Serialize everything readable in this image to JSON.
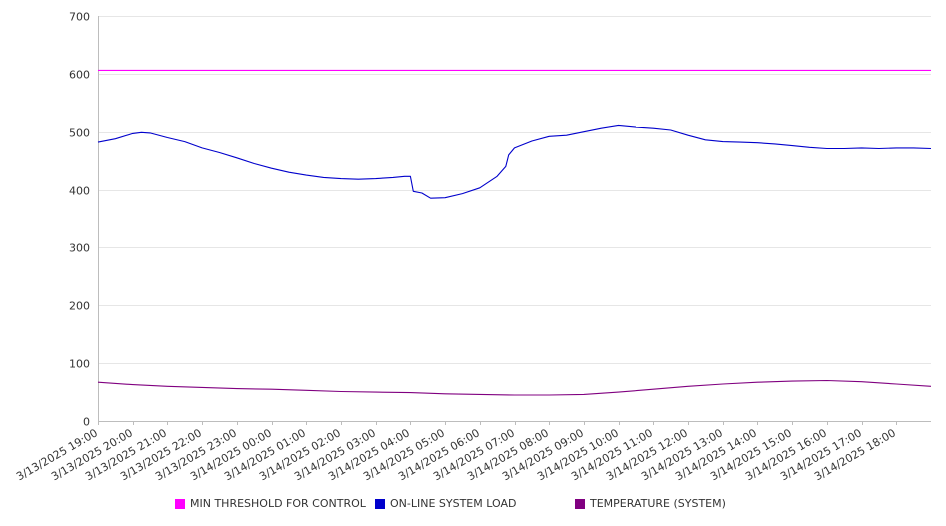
{
  "chart_data": {
    "type": "line",
    "title": "",
    "xlabel": "",
    "ylabel": "",
    "ylim": [
      0,
      700
    ],
    "yticks": [
      "0",
      "100",
      "200",
      "300",
      "400",
      "500",
      "600",
      "700"
    ],
    "grid": true,
    "legend_position": "bottom",
    "x_tick_labels": [
      "3/13/2025 19:00",
      "3/13/2025 20:00",
      "3/13/2025 21:00",
      "3/13/2025 22:00",
      "3/13/2025 23:00",
      "3/14/2025 00:00",
      "3/14/2025 01:00",
      "3/14/2025 02:00",
      "3/14/2025 03:00",
      "3/14/2025 04:00",
      "3/14/2025 05:00",
      "3/14/2025 06:00",
      "3/14/2025 07:00",
      "3/14/2025 08:00",
      "3/14/2025 09:00",
      "3/14/2025 10:00",
      "3/14/2025 11:00",
      "3/14/2025 12:00",
      "3/14/2025 13:00",
      "3/14/2025 14:00",
      "3/14/2025 15:00",
      "3/14/2025 16:00",
      "3/14/2025 17:00",
      "3/14/2025 18:00"
    ],
    "series": [
      {
        "name": "MIN THRESHOLD FOR CONTROL",
        "color": "#ff00ff",
        "points": [
          [
            "3/13/2025 19:00",
            606
          ],
          [
            "3/14/2025 19:00",
            606
          ]
        ]
      },
      {
        "name": "ON-LINE SYSTEM LOAD",
        "color": "#0000cc",
        "points": [
          [
            "3/13/2025 19:00",
            482
          ],
          [
            "3/13/2025 19:30",
            488
          ],
          [
            "3/13/2025 20:00",
            497
          ],
          [
            "3/13/2025 20:15",
            499
          ],
          [
            "3/13/2025 20:30",
            498
          ],
          [
            "3/13/2025 21:00",
            490
          ],
          [
            "3/13/2025 21:30",
            483
          ],
          [
            "3/13/2025 22:00",
            472
          ],
          [
            "3/13/2025 22:30",
            464
          ],
          [
            "3/13/2025 23:00",
            455
          ],
          [
            "3/13/2025 23:30",
            445
          ],
          [
            "3/14/2025 00:00",
            437
          ],
          [
            "3/14/2025 00:30",
            430
          ],
          [
            "3/14/2025 01:00",
            425
          ],
          [
            "3/14/2025 01:30",
            421
          ],
          [
            "3/14/2025 02:00",
            419
          ],
          [
            "3/14/2025 02:30",
            418
          ],
          [
            "3/14/2025 03:00",
            419
          ],
          [
            "3/14/2025 03:30",
            421
          ],
          [
            "3/14/2025 03:50",
            423
          ],
          [
            "3/14/2025 04:00",
            423
          ],
          [
            "3/14/2025 04:05",
            397
          ],
          [
            "3/14/2025 04:20",
            394
          ],
          [
            "3/14/2025 04:35",
            385
          ],
          [
            "3/14/2025 05:00",
            386
          ],
          [
            "3/14/2025 05:30",
            393
          ],
          [
            "3/14/2025 06:00",
            403
          ],
          [
            "3/14/2025 06:30",
            423
          ],
          [
            "3/14/2025 06:45",
            440
          ],
          [
            "3/14/2025 06:50",
            460
          ],
          [
            "3/14/2025 07:00",
            472
          ],
          [
            "3/14/2025 07:30",
            484
          ],
          [
            "3/14/2025 08:00",
            492
          ],
          [
            "3/14/2025 08:30",
            494
          ],
          [
            "3/14/2025 09:00",
            500
          ],
          [
            "3/14/2025 09:30",
            506
          ],
          [
            "3/14/2025 10:00",
            511
          ],
          [
            "3/14/2025 10:30",
            508
          ],
          [
            "3/14/2025 11:00",
            506
          ],
          [
            "3/14/2025 11:30",
            503
          ],
          [
            "3/14/2025 12:00",
            494
          ],
          [
            "3/14/2025 12:30",
            486
          ],
          [
            "3/14/2025 13:00",
            483
          ],
          [
            "3/14/2025 13:30",
            482
          ],
          [
            "3/14/2025 14:00",
            481
          ],
          [
            "3/14/2025 14:30",
            479
          ],
          [
            "3/14/2025 15:00",
            476
          ],
          [
            "3/14/2025 15:30",
            473
          ],
          [
            "3/14/2025 16:00",
            471
          ],
          [
            "3/14/2025 16:30",
            471
          ],
          [
            "3/14/2025 17:00",
            472
          ],
          [
            "3/14/2025 17:30",
            471
          ],
          [
            "3/14/2025 18:00",
            472
          ],
          [
            "3/14/2025 18:30",
            472
          ],
          [
            "3/14/2025 19:00",
            471
          ]
        ]
      },
      {
        "name": "TEMPERATURE (SYSTEM)",
        "color": "#800080",
        "points": [
          [
            "3/13/2025 19:00",
            67
          ],
          [
            "3/13/2025 20:00",
            63
          ],
          [
            "3/13/2025 21:00",
            60
          ],
          [
            "3/13/2025 22:00",
            58
          ],
          [
            "3/13/2025 23:00",
            56
          ],
          [
            "3/14/2025 00:00",
            55
          ],
          [
            "3/14/2025 01:00",
            53
          ],
          [
            "3/14/2025 02:00",
            51
          ],
          [
            "3/14/2025 03:00",
            50
          ],
          [
            "3/14/2025 04:00",
            49
          ],
          [
            "3/14/2025 05:00",
            47
          ],
          [
            "3/14/2025 06:00",
            46
          ],
          [
            "3/14/2025 07:00",
            45
          ],
          [
            "3/14/2025 08:00",
            45
          ],
          [
            "3/14/2025 09:00",
            46
          ],
          [
            "3/14/2025 10:00",
            50
          ],
          [
            "3/14/2025 11:00",
            55
          ],
          [
            "3/14/2025 12:00",
            60
          ],
          [
            "3/14/2025 13:00",
            64
          ],
          [
            "3/14/2025 14:00",
            67
          ],
          [
            "3/14/2025 15:00",
            69
          ],
          [
            "3/14/2025 16:00",
            70
          ],
          [
            "3/14/2025 17:00",
            68
          ],
          [
            "3/14/2025 18:00",
            64
          ],
          [
            "3/14/2025 19:00",
            60
          ]
        ]
      }
    ]
  }
}
